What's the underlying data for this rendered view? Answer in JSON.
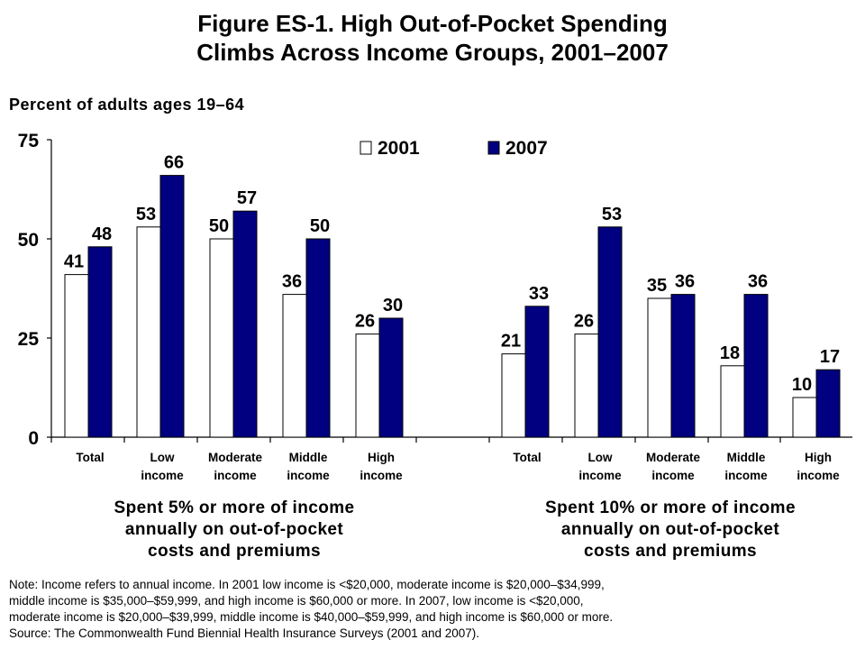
{
  "title_line1": "Figure ES-1. High Out-of-Pocket Spending",
  "title_line2": "Climbs Across Income Groups, 2001–2007",
  "subtitle": "Percent of adults ages 19–64",
  "colors": {
    "s2001": "#ffffff",
    "s2007": "#000080",
    "axis": "#000000"
  },
  "groups": [
    {
      "caption": [
        "Spent 5% or more of income",
        "annually on out-of-pocket",
        "costs and premiums"
      ]
    },
    {
      "caption": [
        "Spent 10% or more of income",
        "annually on out-of-pocket",
        "costs and premiums"
      ]
    }
  ],
  "note_lines": [
    "Note: Income refers to annual income. In 2001 low income is <$20,000, moderate income is $20,000–$34,999,",
    "middle income is $35,000–$59,999, and high income is $60,000 or more. In 2007, low income is <$20,000,",
    "moderate income is $20,000–$39,999, middle income is $40,000–$59,999, and high income is $60,000 or more.",
    "Source: The Commonwealth Fund Biennial Health Insurance Surveys (2001 and 2007)."
  ],
  "chart_data": {
    "type": "bar",
    "title": "Figure ES-1. High Out-of-Pocket Spending Climbs Across Income Groups, 2001–2007",
    "ylabel": "Percent of adults ages 19–64",
    "ylim": [
      0,
      75
    ],
    "yticks": [
      0,
      25,
      50,
      75
    ],
    "legend_position": "top-center",
    "categories": [
      [
        "Total"
      ],
      [
        "Low",
        "income"
      ],
      [
        "Moderate",
        "income"
      ],
      [
        "Middle",
        "income"
      ],
      [
        "High",
        "income"
      ],
      [
        "Total"
      ],
      [
        "Low",
        "income"
      ],
      [
        "Moderate",
        "income"
      ],
      [
        "Middle",
        "income"
      ],
      [
        "High",
        "income"
      ]
    ],
    "category_groups": [
      "Spent 5% or more of income annually on out-of-pocket costs and premiums",
      "Spent 10% or more of income annually on out-of-pocket costs and premiums"
    ],
    "series": [
      {
        "name": "2001",
        "values": [
          41,
          53,
          50,
          36,
          26,
          21,
          26,
          35,
          18,
          10
        ]
      },
      {
        "name": "2007",
        "values": [
          48,
          66,
          57,
          50,
          30,
          33,
          53,
          36,
          36,
          17
        ]
      }
    ]
  }
}
